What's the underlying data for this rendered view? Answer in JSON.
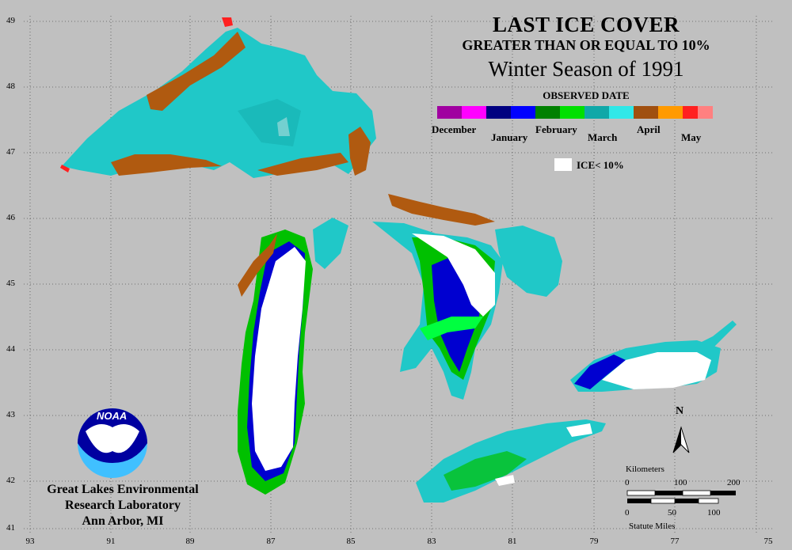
{
  "title": "LAST ICE COVER",
  "subtitle": "GREATER THAN OR EQUAL TO 10%",
  "season": "Winter Season of 1991",
  "legend": {
    "heading": "OBSERVED DATE",
    "months": [
      "December",
      "January",
      "February",
      "March",
      "April",
      "May"
    ],
    "ice_label": "ICE< 10%",
    "colors": {
      "december": "#a000a0",
      "january": "#0000d0",
      "february": "#00c000",
      "march": "#20c8c8",
      "april": "#b05a10",
      "may": "#ff2020",
      "ice_under_10": "#ffffff"
    }
  },
  "axes": {
    "latitudes": [
      "49",
      "48",
      "47",
      "46",
      "45",
      "44",
      "43",
      "42",
      "41"
    ],
    "longitudes": [
      "93",
      "91",
      "89",
      "87",
      "85",
      "83",
      "81",
      "79",
      "77",
      "75"
    ]
  },
  "organization": {
    "line1": "Great Lakes Environmental",
    "line2": "Research Laboratory",
    "line3": "Ann Arbor, MI",
    "logo_text": "NOAA"
  },
  "scale_bar": {
    "km_title": "Kilometers",
    "km_ticks": [
      "0",
      "100",
      "200"
    ],
    "mi_ticks": [
      "0",
      "50",
      "100"
    ],
    "mi_title": "Statute Miles"
  },
  "north_arrow": "N"
}
